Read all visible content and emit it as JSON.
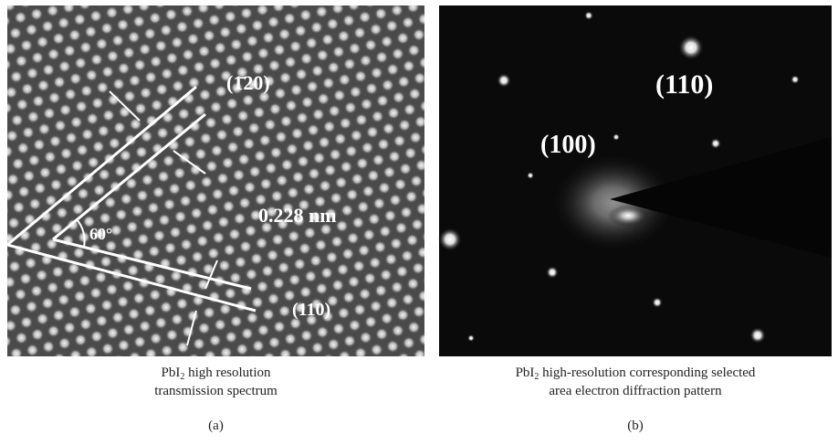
{
  "panels": [
    {
      "annotations": [
        "(1̄20)",
        "0.228 nm",
        "60°",
        "(110)"
      ],
      "caption": {
        "formula": "PbI",
        "subscript": "2",
        "line1": " high resolution",
        "line2": "transmission spectrum"
      },
      "label": "(a)"
    },
    {
      "annotations": [
        "(110)",
        "(100)"
      ],
      "caption": {
        "formula": "PbI",
        "subscript": "2",
        "line1": " high-resolution corresponding selected",
        "line2": "area electron diffraction pattern"
      },
      "label": "(b)"
    }
  ]
}
